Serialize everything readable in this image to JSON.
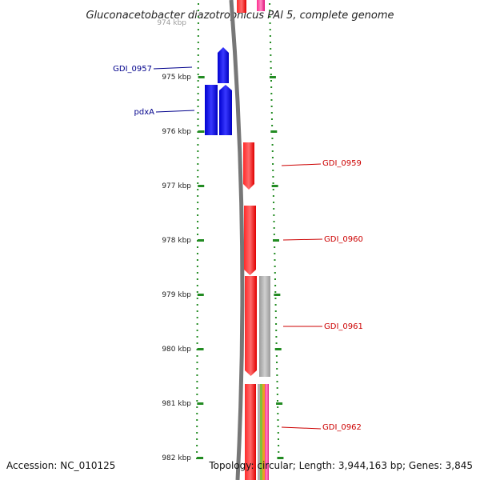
{
  "title": "Gluconacetobacter diazotrophicus PAl 5, complete genome",
  "footer": {
    "accession": "Accession: NC_010125",
    "topology": "Topology: circular; Length: 3,944,163 bp; Genes: 3,845"
  },
  "scale": {
    "top_partial_label": "974 kbp",
    "labels": [
      "975 kbp",
      "976 kbp",
      "977 kbp",
      "978 kbp",
      "979 kbp",
      "980 kbp",
      "981 kbp",
      "982 kbp"
    ]
  },
  "genes": [
    {
      "name": "GDI_0957",
      "strand": "reverse",
      "color": "#0000ee"
    },
    {
      "name": "pdxA",
      "strand": "reverse",
      "color": "#0000ee"
    },
    {
      "name": "GDI_0959",
      "strand": "forward",
      "color": "#ff0000"
    },
    {
      "name": "GDI_0960",
      "strand": "forward",
      "color": "#ff0000"
    },
    {
      "name": "GDI_0961",
      "strand": "forward",
      "color": "#ff0000"
    },
    {
      "name": "GDI_0962",
      "strand": "forward",
      "color": "#ff0000"
    }
  ],
  "colors": {
    "reverse_label": "#00008b",
    "forward_label": "#cc0000",
    "backbone": "#777777",
    "tick_dot": "#228b22",
    "gray_feature": "#a9a9a9",
    "magenta_feature": "#ff1493"
  }
}
